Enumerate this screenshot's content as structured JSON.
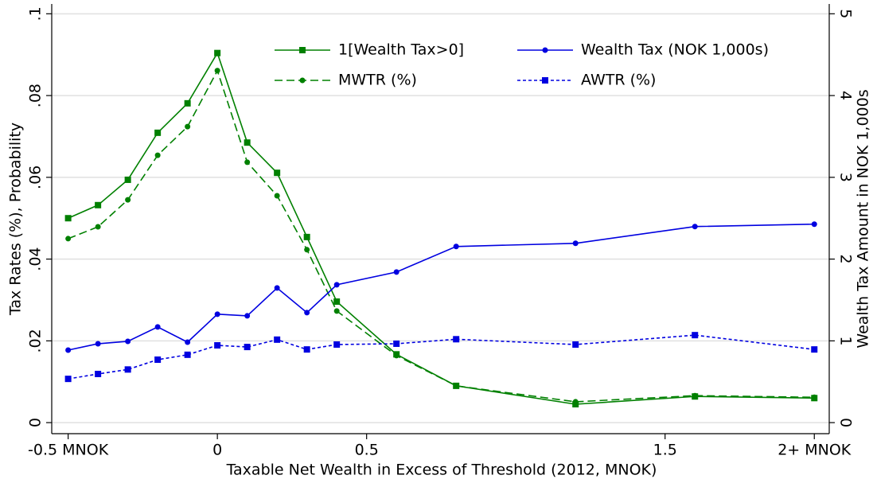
{
  "chart_data": {
    "type": "line",
    "x_label": "Taxable Net Wealth in Excess of Threshold (2012, MNOK)",
    "y_label": "Tax Rates (%), Probability",
    "y2_label": "Wealth Tax Amount in NOK 1,000s",
    "x": [
      -0.5,
      -0.4,
      -0.3,
      -0.2,
      -0.1,
      0,
      0.1,
      0.2,
      0.3,
      0.4,
      0.6,
      0.8,
      1.2,
      1.6,
      2
    ],
    "series": [
      {
        "name": "1[Wealth Tax>0]",
        "color": "#008000",
        "style": "solid",
        "marker": "square",
        "values": [
          0.05,
          0.0532,
          0.0594,
          0.0709,
          0.0781,
          0.0904,
          0.0685,
          0.0611,
          0.0454,
          0.0296,
          0.0167,
          0.009,
          0.0045,
          0.0064,
          0.006
        ]
      },
      {
        "name": "MWTR (%)",
        "color": "#008000",
        "style": "dashed",
        "marker": "circle",
        "values": [
          0.045,
          0.0479,
          0.0545,
          0.0654,
          0.0724,
          0.0861,
          0.0637,
          0.0555,
          0.0423,
          0.0273,
          0.0164,
          0.009,
          0.0051,
          0.0066,
          0.0062
        ]
      },
      {
        "name": "Wealth Tax (NOK 1,000s)",
        "color": "#0000e0",
        "style": "solid",
        "marker": "circle",
        "axis": "y2",
        "values": [
          0.887,
          0.965,
          0.994,
          1.17,
          0.984,
          1.326,
          1.306,
          1.647,
          1.345,
          1.686,
          1.842,
          2.154,
          2.193,
          2.398,
          2.427
        ]
      },
      {
        "name": "AWTR (%)",
        "color": "#0000e0",
        "style": "dotted",
        "marker": "square",
        "values": [
          0.0107,
          0.0119,
          0.013,
          0.0154,
          0.0166,
          0.0189,
          0.0185,
          0.0203,
          0.0179,
          0.0191,
          0.0193,
          0.0204,
          0.0191,
          0.0214,
          0.0179
        ]
      }
    ],
    "xlim": [
      -0.555,
      2.05
    ],
    "xticks": [
      {
        "value": -0.5,
        "label": "-0.5 MNOK"
      },
      0,
      0.5,
      1.5,
      {
        "value": 2,
        "label": "2+ MNOK"
      }
    ],
    "ylim": [
      -0.0027,
      0.1024
    ],
    "yticks": [
      0,
      {
        "value": 0.02,
        "label": ".02"
      },
      {
        "value": 0.04,
        "label": ".04"
      },
      {
        "value": 0.06,
        "label": ".06"
      },
      {
        "value": 0.08,
        "label": ".08"
      },
      {
        "value": 0.1,
        "label": ".1"
      }
    ],
    "y2lim": [
      -0.135,
      5.12
    ],
    "y2ticks": [
      0,
      1,
      2,
      3,
      4,
      5
    ],
    "grid": true,
    "legend": "top"
  }
}
